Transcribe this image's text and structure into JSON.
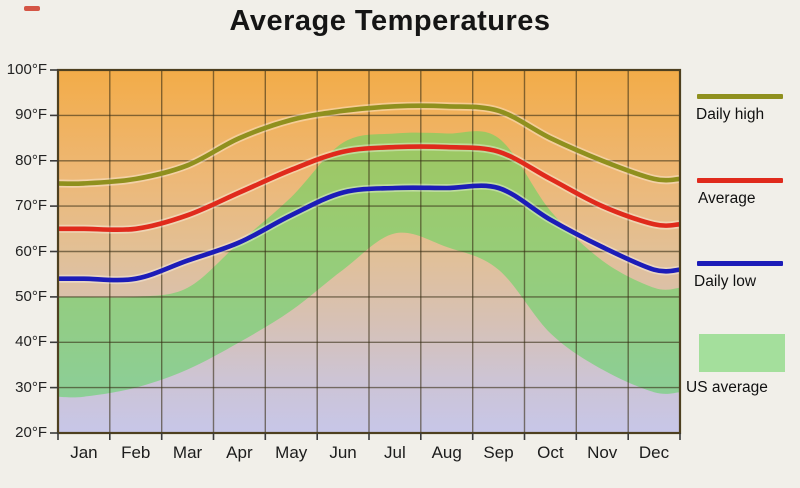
{
  "title": "Average Temperatures",
  "y_axis": {
    "labels": [
      "100°F",
      "90°F",
      "80°F",
      "70°F",
      "60°F",
      "50°F",
      "40°F",
      "30°F",
      "20°F"
    ],
    "min": 20,
    "max": 100,
    "step": 10
  },
  "x_axis": {
    "months": [
      "Jan",
      "Feb",
      "Mar",
      "Apr",
      "May",
      "Jun",
      "Jul",
      "Aug",
      "Sep",
      "Oct",
      "Nov",
      "Dec"
    ]
  },
  "legend": [
    {
      "label": "Daily high",
      "type": "line",
      "color": "#8F901E"
    },
    {
      "label": "Average",
      "type": "line",
      "color": "#E02A1C"
    },
    {
      "label": "Daily low",
      "type": "line",
      "color": "#1C1CB8"
    },
    {
      "label": "US average",
      "type": "area",
      "color": "#A4DF9C"
    }
  ],
  "chart_data": {
    "type": "line",
    "title": "Average Temperatures",
    "categories": [
      "Jan",
      "Feb",
      "Mar",
      "Apr",
      "May",
      "Jun",
      "Jul",
      "Aug",
      "Sep",
      "Oct",
      "Nov",
      "Dec"
    ],
    "series": [
      {
        "name": "Daily high",
        "color": "#8F901E",
        "values": [
          75,
          76,
          79,
          85,
          89,
          91,
          92,
          92,
          91,
          85,
          80,
          76
        ]
      },
      {
        "name": "Average",
        "color": "#E02A1C",
        "values": [
          65,
          65,
          68,
          73,
          78,
          82,
          83,
          83,
          82,
          76,
          70,
          66
        ]
      },
      {
        "name": "Daily low",
        "color": "#1C1CB8",
        "values": [
          54,
          54,
          58,
          62,
          68,
          73,
          74,
          74,
          74,
          67,
          61,
          56
        ]
      }
    ],
    "band": {
      "name": "US average",
      "upper": [
        50,
        50,
        52,
        62,
        72,
        84,
        86,
        86,
        85,
        69,
        58,
        52
      ],
      "lower": [
        28,
        30,
        34,
        40,
        47,
        56,
        64,
        61,
        56,
        42,
        34,
        29
      ],
      "fill": "rgba(90,215,95,0.55)"
    },
    "ylim": [
      20,
      100
    ],
    "grid": true,
    "gridline_color": "rgba(55,45,20,0.6)",
    "border_color": "#4E4020",
    "legend_position": "right",
    "background_gradient": [
      [
        "0%",
        "#F3AC48"
      ],
      [
        "30%",
        "#EDB877"
      ],
      [
        "50%",
        "#E2C096"
      ],
      [
        "70%",
        "#D6C1B6"
      ],
      [
        "85%",
        "#CDC4D4"
      ],
      [
        "100%",
        "#C7C6E8"
      ]
    ]
  }
}
